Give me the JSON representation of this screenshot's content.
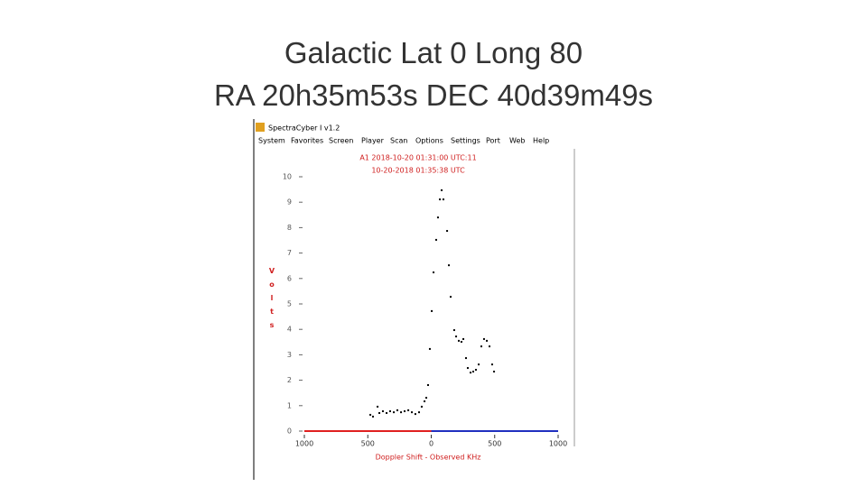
{
  "slide": {
    "title_lines": [
      "Galactic Lat 0 Long 80",
      "RA 20h35m53s  DEC  40d39m49s"
    ]
  },
  "window": {
    "title": "SpectraCyber I v1.2",
    "menu": [
      "System",
      "Favorites",
      "Screen",
      "Player",
      "Scan",
      "Options",
      "Settings",
      "Port",
      "Web",
      "Help"
    ]
  },
  "chart_data": {
    "type": "scatter",
    "header_lines": [
      "A1 2018-10-20 01:31:00 UTC:11",
      "10-20-2018  01:35:38 UTC"
    ],
    "x_label": "Doppler Shift - Observed KHz",
    "y_label": "Volts",
    "xlim": [
      -1000,
      1000
    ],
    "xticks": [
      {
        "value": -1000,
        "label": "1000"
      },
      {
        "value": -500,
        "label": "500"
      },
      0,
      500,
      1000
    ],
    "ylim": [
      0,
      10
    ],
    "yticks": [
      0,
      1,
      2,
      3,
      4,
      5,
      6,
      7,
      8,
      9,
      10
    ],
    "series": [
      {
        "color": "#000000",
        "x": [
          -480,
          -459,
          -423,
          -409,
          -381,
          -352,
          -324,
          -295,
          -267,
          -238,
          -210,
          -181,
          -153,
          -125,
          -96,
          -75,
          -53,
          -39,
          -25,
          -11,
          4,
          18,
          39,
          53,
          68,
          82,
          96,
          125,
          139,
          153,
          181,
          196,
          217,
          238,
          253,
          274,
          288,
          310,
          331,
          352,
          374,
          395,
          416,
          438,
          459,
          480,
          495
        ],
        "values": [
          0.64,
          0.57,
          0.96,
          0.71,
          0.78,
          0.71,
          0.78,
          0.74,
          0.82,
          0.74,
          0.78,
          0.82,
          0.74,
          0.67,
          0.74,
          0.96,
          1.17,
          1.31,
          1.81,
          3.23,
          4.72,
          6.24,
          7.52,
          8.4,
          9.11,
          9.47,
          9.11,
          7.87,
          6.52,
          5.28,
          3.97,
          3.72,
          3.55,
          3.51,
          3.62,
          2.87,
          2.48,
          2.3,
          2.34,
          2.41,
          2.62,
          3.33,
          3.62,
          3.55,
          3.33,
          2.62,
          2.34
        ]
      }
    ],
    "baseline_colors": [
      "#e02020",
      "#2030c0"
    ]
  }
}
